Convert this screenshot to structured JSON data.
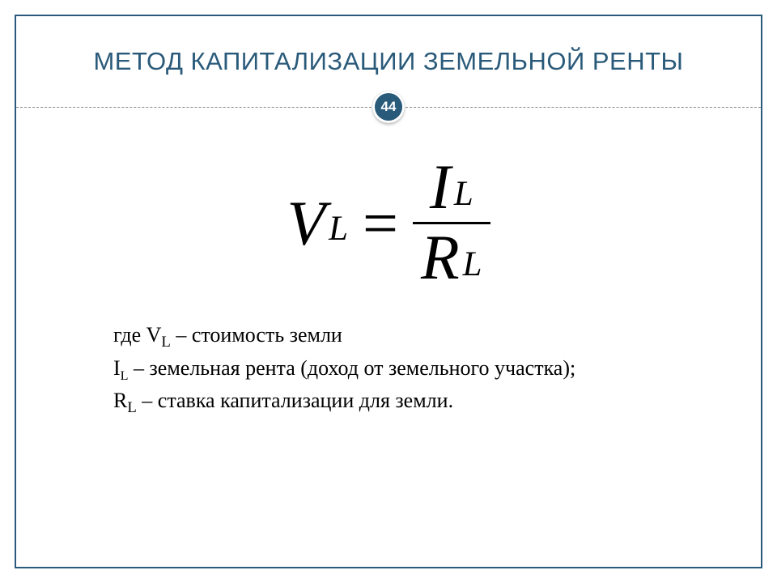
{
  "colors": {
    "frame_border": "#2a5a7a",
    "title_color": "#2a5a7a",
    "dashed_line": "#888888",
    "badge_bg": "#2a5a7a",
    "badge_text": "#ffffff",
    "formula_color": "#000000"
  },
  "title": {
    "text": "МЕТОД КАПИТАЛИЗАЦИИ ЗЕМЕЛЬНОЙ РЕНТЫ",
    "fontsize": 31
  },
  "badge": {
    "number": "44",
    "fontsize": 17
  },
  "formula": {
    "fontsize": 78,
    "lhs_var": "V",
    "lhs_sub": "L",
    "eq": "=",
    "num_var": "I",
    "num_sub": "L",
    "den_var": "R",
    "den_sub": "L"
  },
  "description": {
    "fontsize": 26,
    "line1_pre": "где V",
    "line1_sub": "L",
    "line1_post": " – стоимость земли",
    "line2_pre": "I",
    "line2_sub": "L",
    "line2_post": " – земельная рента (доход от земельного участка);",
    "line3_pre": "R",
    "line3_sub": "L",
    "line3_post": " – ставка капитализации для земли."
  }
}
